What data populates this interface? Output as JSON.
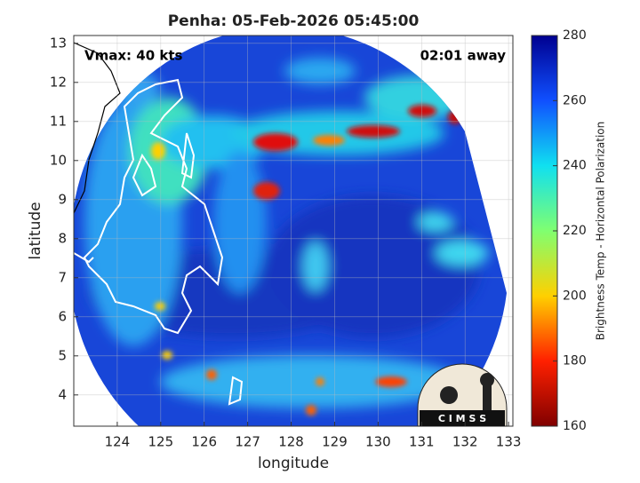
{
  "chart_data": {
    "type": "map",
    "title": "Penha: 05-Feb-2026 05:45:00",
    "xlabel": "longitude",
    "ylabel": "latitude",
    "xlim": [
      123,
      133.1
    ],
    "ylim": [
      3.2,
      13.2
    ],
    "xticks": [
      124,
      125,
      126,
      127,
      128,
      129,
      130,
      131,
      132,
      133
    ],
    "yticks": [
      4,
      5,
      6,
      7,
      8,
      9,
      10,
      11,
      12,
      13
    ],
    "grid": true,
    "annotations": [
      "Vmax: 40 kts",
      "02:01 away"
    ],
    "colorbar": {
      "label": "Brightness Temp - Horizontal Polarization",
      "lim": [
        160,
        280
      ],
      "ticks": [
        160,
        180,
        200,
        220,
        240,
        260,
        280
      ],
      "colors": [
        "#800000",
        "#ff2000",
        "#ffd000",
        "#80ff70",
        "#10e0f0",
        "#1050ff",
        "#000090"
      ]
    },
    "logo": "C I M S S"
  }
}
